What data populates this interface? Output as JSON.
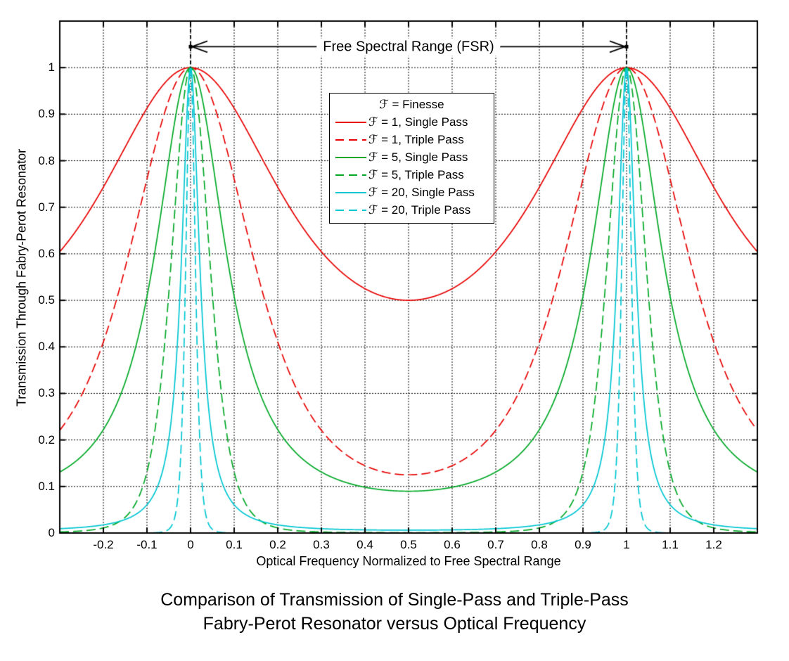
{
  "chart_data": {
    "type": "line",
    "title_lines": [
      "Comparison of Transmission of Single-Pass and Triple-Pass",
      "Fabry-Perot Resonator versus Optical Frequency"
    ],
    "xlabel": "Optical Frequency Normalized to Free Spectral Range",
    "ylabel": "Transmission Through Fabry-Perot Resonator",
    "xlim": [
      -0.3,
      1.3
    ],
    "ylim": [
      0,
      1.1
    ],
    "xticks": {
      "values": [
        -0.2,
        -0.1,
        0,
        0.1,
        0.2,
        0.3,
        0.4,
        0.5,
        0.6,
        0.7,
        0.8,
        0.9,
        1,
        1.1,
        1.2
      ],
      "labels": [
        "-0.2",
        "-0.1",
        "0",
        "0.1",
        "0.2",
        "0.3",
        "0.4",
        "0.5",
        "0.6",
        "0.7",
        "0.8",
        "0.9",
        "1",
        "1.1",
        "1.2"
      ]
    },
    "yticks": {
      "values": [
        0,
        0.1,
        0.2,
        0.3,
        0.4,
        0.5,
        0.6,
        0.7,
        0.8,
        0.9,
        1
      ],
      "labels": [
        "0",
        "0.1",
        "0.2",
        "0.3",
        "0.4",
        "0.5",
        "0.6",
        "0.7",
        "0.8",
        "0.9",
        "1"
      ]
    },
    "grid": true,
    "grid_style": "dotted",
    "annotation": {
      "label": "Free Spectral Range (FSR)",
      "x_start": 0,
      "x_end": 1,
      "y": 1.045,
      "style": "double-headed arrow with dashed vertical droplines at x=0 and x=1"
    },
    "series_formula": "T(x) = [ 1 / (1 + coef * sin^2(pi*x)) ] ^ exponent",
    "peak_transmission": 1,
    "peaks_at_x": [
      0,
      1
    ],
    "minima_at_x": 0.5,
    "legend": {
      "symbol": "ℱ",
      "title_suffix": " = Finesse",
      "position": "upper center-left",
      "entries": [
        {
          "label_suffix": " = 1, Single Pass",
          "finesse": 1,
          "pass": "single",
          "color": "#E80000",
          "dash": "solid",
          "coef": 1.0,
          "exponent": 1,
          "min_transmission": 0.5
        },
        {
          "label_suffix": " = 1, Triple Pass",
          "finesse": 1,
          "pass": "triple",
          "color": "#E80000",
          "dash": "dashed",
          "coef": 1.0,
          "exponent": 3,
          "min_transmission": 0.125
        },
        {
          "label_suffix": " = 5, Single Pass",
          "finesse": 5,
          "pass": "single",
          "color": "#00A826",
          "dash": "solid",
          "coef": 10.132,
          "exponent": 1,
          "min_transmission": 0.0899
        },
        {
          "label_suffix": " = 5, Triple Pass",
          "finesse": 5,
          "pass": "triple",
          "color": "#00A826",
          "dash": "dashed",
          "coef": 10.132,
          "exponent": 3,
          "min_transmission": 0.00073
        },
        {
          "label_suffix": " = 20, Single Pass",
          "finesse": 20,
          "pass": "single",
          "color": "#00C6D2",
          "dash": "solid",
          "coef": 162.114,
          "exponent": 1,
          "min_transmission": 0.0061
        },
        {
          "label_suffix": " = 20, Triple Pass",
          "finesse": 20,
          "pass": "triple",
          "color": "#00C6D2",
          "dash": "dashed",
          "coef": 162.114,
          "exponent": 3,
          "min_transmission": 2e-07
        }
      ]
    },
    "colors": {
      "axis": "#000000",
      "grid": "#000000",
      "background": "#FFFFFF"
    }
  }
}
